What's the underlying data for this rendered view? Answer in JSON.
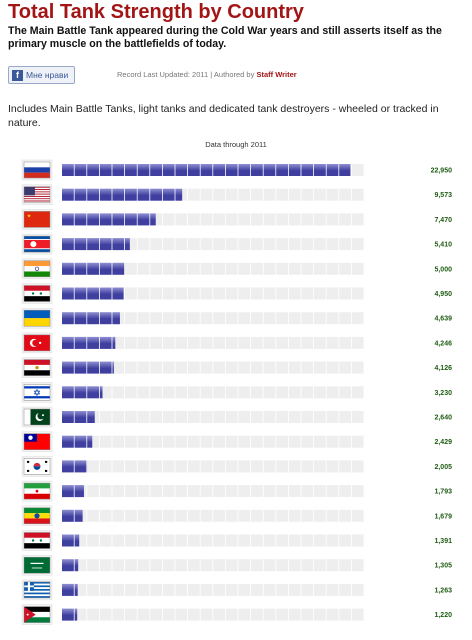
{
  "header": {
    "title": "Total Tank Strength by Country",
    "subtitle": "The Main Battle Tank appeared during the Cold War years and still asserts itself as the primary muscle on the battlefields of today."
  },
  "social": {
    "like_label": "Мне нрави",
    "like_icon": "facebook-icon"
  },
  "meta": {
    "record_updated": "Record Last Updated: 2011",
    "separator": "|",
    "authored_by": "Authored by",
    "author": "Staff Writer"
  },
  "intro": "Includes Main Battle Tanks, light tanks and dedicated tank destroyers - wheeled or tracked in nature.",
  "chart_data": {
    "type": "bar",
    "orientation": "horizontal",
    "note": "Data through 2011",
    "categories": [
      "Russia",
      "United States",
      "China",
      "North Korea",
      "India",
      "Syria",
      "Ukraine",
      "Turkey",
      "Egypt",
      "Israel",
      "Pakistan",
      "Taiwan",
      "South Korea",
      "Iran",
      "Ethiopia",
      "Iraq",
      "Saudi Arabia",
      "Greece",
      "Jordan"
    ],
    "values": [
      22950,
      9573,
      7470,
      5410,
      5000,
      4950,
      4639,
      4246,
      4126,
      3230,
      2640,
      2429,
      2005,
      1793,
      1679,
      1391,
      1305,
      1263,
      1220
    ],
    "value_labels": [
      "22,950",
      "9,573",
      "7,470",
      "5,410",
      "5,000",
      "4,950",
      "4,639",
      "4,246",
      "4,126",
      "3,230",
      "2,640",
      "2,429",
      "2,005",
      "1,793",
      "1,679",
      "1,391",
      "1,305",
      "1,263",
      "1,220"
    ],
    "xlim": [
      0,
      24000
    ],
    "segments": 24,
    "grid": false,
    "colors": {
      "bar": "#3f3fa0",
      "bar_light": "#8f8fd2",
      "track": "#eeeeee",
      "value_text": "#1e5c12"
    }
  },
  "flags": [
    {
      "icon": "russia-flag-icon",
      "type": "h3",
      "colors": [
        "#ffffff",
        "#1c3fa8",
        "#d52b1e"
      ]
    },
    {
      "icon": "usa-flag-icon",
      "type": "usa",
      "colors": [
        "#b22234",
        "#ffffff",
        "#3c3b6e"
      ]
    },
    {
      "icon": "china-flag-icon",
      "type": "china",
      "colors": [
        "#de2910",
        "#ffde00"
      ]
    },
    {
      "icon": "north-korea-flag-icon",
      "type": "nk",
      "colors": [
        "#024fa2",
        "#ffffff",
        "#ed1c27"
      ]
    },
    {
      "icon": "india-flag-icon",
      "type": "h3",
      "colors": [
        "#ff9933",
        "#ffffff",
        "#138808"
      ]
    },
    {
      "icon": "syria-flag-icon",
      "type": "h3",
      "colors": [
        "#ce1126",
        "#ffffff",
        "#000000"
      ]
    },
    {
      "icon": "ukraine-flag-icon",
      "type": "h2",
      "colors": [
        "#005bbb",
        "#ffd500"
      ]
    },
    {
      "icon": "turkey-flag-icon",
      "type": "turkey",
      "colors": [
        "#e30a17",
        "#ffffff"
      ]
    },
    {
      "icon": "egypt-flag-icon",
      "type": "h3",
      "colors": [
        "#ce1126",
        "#ffffff",
        "#000000"
      ]
    },
    {
      "icon": "israel-flag-icon",
      "type": "israel",
      "colors": [
        "#ffffff",
        "#0038b8"
      ]
    },
    {
      "icon": "pakistan-flag-icon",
      "type": "pakistan",
      "colors": [
        "#ffffff",
        "#01411c"
      ]
    },
    {
      "icon": "taiwan-flag-icon",
      "type": "taiwan",
      "colors": [
        "#fe0000",
        "#000095",
        "#ffffff"
      ]
    },
    {
      "icon": "south-korea-flag-icon",
      "type": "sk",
      "colors": [
        "#ffffff",
        "#cd2e3a",
        "#0047a0",
        "#000000"
      ]
    },
    {
      "icon": "iran-flag-icon",
      "type": "h3",
      "colors": [
        "#239f40",
        "#ffffff",
        "#da0000"
      ]
    },
    {
      "icon": "ethiopia-flag-icon",
      "type": "h3",
      "colors": [
        "#078930",
        "#fcdd09",
        "#da121a"
      ]
    },
    {
      "icon": "iraq-flag-icon",
      "type": "h3",
      "colors": [
        "#ce1126",
        "#ffffff",
        "#000000"
      ]
    },
    {
      "icon": "saudi-arabia-flag-icon",
      "type": "solid",
      "colors": [
        "#006c35",
        "#ffffff"
      ]
    },
    {
      "icon": "greece-flag-icon",
      "type": "greece",
      "colors": [
        "#0d5eaf",
        "#ffffff"
      ]
    },
    {
      "icon": "jordan-flag-icon",
      "type": "jordan",
      "colors": [
        "#000000",
        "#ffffff",
        "#007a3d",
        "#ce1126"
      ]
    }
  ]
}
